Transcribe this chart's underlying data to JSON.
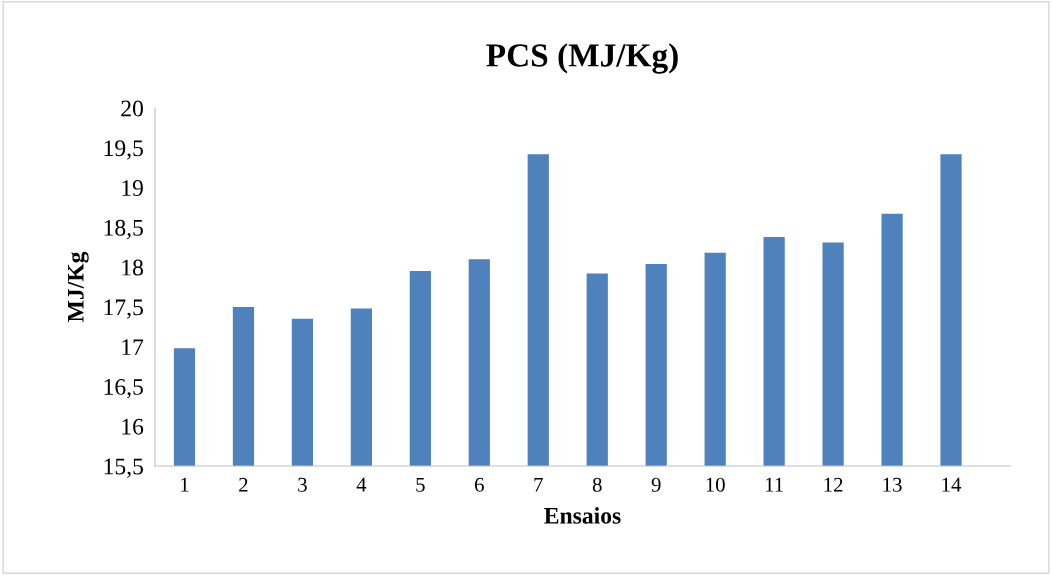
{
  "chart_data": {
    "type": "bar",
    "title": "PCS (MJ/Kg)",
    "xlabel": "Ensaios",
    "ylabel": "MJ/Kg",
    "categories": [
      "1",
      "2",
      "3",
      "4",
      "5",
      "6",
      "7",
      "8",
      "9",
      "10",
      "11",
      "12",
      "13",
      "14"
    ],
    "values": [
      16.98,
      17.5,
      17.35,
      17.48,
      17.95,
      18.1,
      19.42,
      17.92,
      18.04,
      18.18,
      18.38,
      18.31,
      18.67,
      19.42
    ],
    "color": "#4f81bd",
    "ylim": [
      15.5,
      20
    ],
    "yticks": [
      {
        "value": 15.5,
        "label": "15,5"
      },
      16,
      {
        "value": 16.5,
        "label": "16,5"
      },
      17,
      {
        "value": 17.5,
        "label": "17,5"
      },
      18,
      {
        "value": 18.5,
        "label": "18,5"
      },
      19,
      {
        "value": 19.5,
        "label": "19,5"
      },
      20
    ],
    "grid": false
  }
}
